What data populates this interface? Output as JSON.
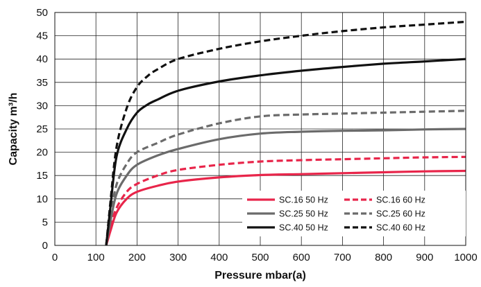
{
  "chart_data": {
    "type": "line",
    "title": "",
    "xlabel": "Pressure mbar(a)",
    "ylabel": "Capacity m³/h",
    "xlim": [
      0,
      1000
    ],
    "ylim": [
      0,
      50
    ],
    "x_ticks": [
      "0",
      "100",
      "200",
      "300",
      "400",
      "500",
      "600",
      "700",
      "800",
      "900",
      "1000"
    ],
    "y_ticks": [
      "0",
      "5",
      "10",
      "15",
      "20",
      "25",
      "30",
      "35",
      "40",
      "45",
      "50"
    ],
    "grid": true,
    "legend_position": "bottom-right",
    "series": [
      {
        "name": "SC.16 50 Hz",
        "color": "#e8254a",
        "dash": "solid",
        "x": [
          125,
          135,
          150,
          175,
          200,
          250,
          300,
          400,
          500,
          600,
          700,
          800,
          900,
          1000
        ],
        "y": [
          0,
          3,
          7,
          10,
          11.5,
          12.8,
          13.7,
          14.6,
          15.1,
          15.3,
          15.5,
          15.7,
          15.9,
          16
        ]
      },
      {
        "name": "SC.16 60 Hz",
        "color": "#e8254a",
        "dash": "dashed",
        "x": [
          125,
          135,
          150,
          175,
          200,
          250,
          300,
          400,
          500,
          600,
          700,
          800,
          900,
          1000
        ],
        "y": [
          0,
          4,
          8,
          11.5,
          13.2,
          15,
          16.2,
          17.3,
          18,
          18.3,
          18.5,
          18.7,
          18.9,
          19
        ]
      },
      {
        "name": "SC.25 50 Hz",
        "color": "#6b6b6b",
        "dash": "solid",
        "x": [
          125,
          135,
          150,
          175,
          200,
          250,
          300,
          400,
          500,
          600,
          700,
          800,
          900,
          1000
        ],
        "y": [
          0,
          5,
          11,
          15,
          17.3,
          19.3,
          20.7,
          22.8,
          24,
          24.4,
          24.6,
          24.7,
          24.9,
          25
        ]
      },
      {
        "name": "SC.25 60 Hz",
        "color": "#6b6b6b",
        "dash": "dashed",
        "x": [
          125,
          135,
          150,
          175,
          200,
          250,
          300,
          400,
          500,
          600,
          700,
          800,
          900,
          1000
        ],
        "y": [
          0,
          6,
          13,
          17.5,
          20,
          22,
          23.8,
          26.2,
          27.7,
          28.1,
          28.3,
          28.5,
          28.7,
          28.9
        ]
      },
      {
        "name": "SC.40 50 Hz",
        "color": "#111111",
        "dash": "solid",
        "x": [
          125,
          135,
          150,
          175,
          200,
          225,
          250,
          300,
          400,
          500,
          600,
          700,
          800,
          900,
          1000
        ],
        "y": [
          0,
          8,
          19,
          25,
          28.5,
          30.2,
          31.3,
          33.2,
          35.2,
          36.5,
          37.5,
          38.3,
          39,
          39.5,
          40
        ]
      },
      {
        "name": "SC.40 60 Hz",
        "color": "#111111",
        "dash": "dashed",
        "x": [
          125,
          135,
          150,
          175,
          200,
          225,
          250,
          300,
          400,
          500,
          600,
          700,
          800,
          900,
          1000
        ],
        "y": [
          0,
          9,
          21,
          29.5,
          34,
          36.3,
          37.8,
          40,
          42.2,
          43.8,
          45,
          46,
          46.8,
          47.4,
          48
        ]
      }
    ]
  }
}
